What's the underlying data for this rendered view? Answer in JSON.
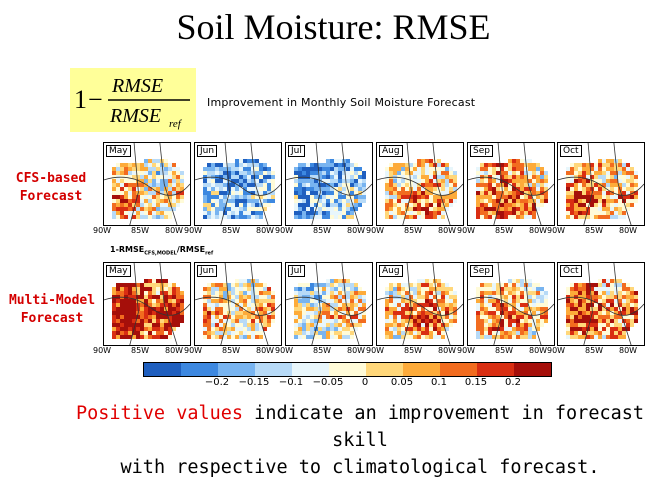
{
  "title": "Soil Moisture: RMSE",
  "formula": {
    "one": "1",
    "minus": "−",
    "numerator": "RMSE",
    "denominator": "RMSE",
    "subscript": "ref"
  },
  "subtitle": "Improvement in Monthly Soil Moisture Forecast",
  "rows": [
    {
      "label_line1": "CFS-based",
      "label_line2": "Forecast"
    },
    {
      "label_line1": "Multi-Model",
      "label_line2": "Forecast"
    }
  ],
  "formula2": "1-RMSE",
  "formula2_sub": "CFS,MODEL",
  "formula2_rest": "/RMSE",
  "formula2_sub2": "ref",
  "months": [
    "May",
    "Jun",
    "Jul",
    "Aug",
    "Sep",
    "Oct"
  ],
  "lon_ticks": [
    "90W",
    "85W",
    "80W"
  ],
  "colorbar": {
    "colors": [
      "#1f5fbf",
      "#3d88e0",
      "#78b4f0",
      "#b7daf7",
      "#e8f6fb",
      "#fffbd8",
      "#ffd77a",
      "#fdab3a",
      "#f26c1f",
      "#d92e12",
      "#a50f0a",
      "#ffffff"
    ],
    "labels": [
      "−0.2",
      "−0.15",
      "−0.1",
      "−0.05",
      "0",
      "0.05",
      "0.1",
      "0.15",
      "0.2"
    ]
  },
  "note": {
    "highlight": "Positive values",
    "rest_line1": " indicate an improvement in forecast skill",
    "line2": "with respective to climatological forecast."
  }
}
